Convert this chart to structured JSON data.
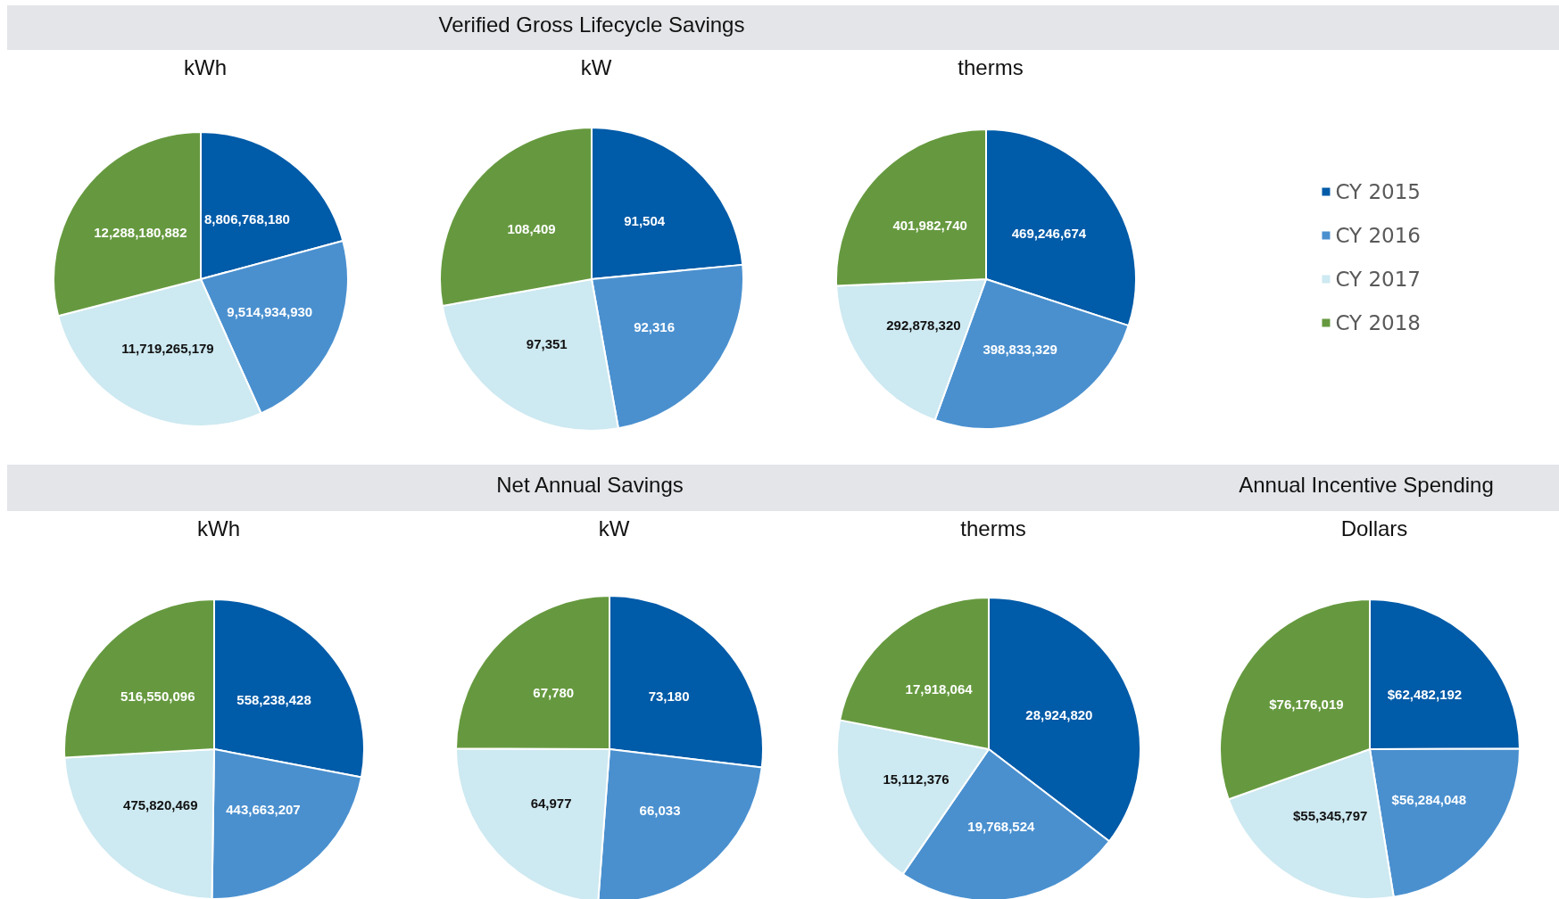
{
  "chart_data": [
    {
      "type": "pie",
      "title": "kWh",
      "annotations": [
        "Verified Gross Lifecycle Savings"
      ],
      "categories": [
        null,
        null,
        null,
        null
      ],
      "values": [
        8806768180,
        9514934930,
        11719265179,
        12288180882
      ],
      "value_labels": [
        "8,806,768,180",
        "9,514,934,930",
        "11,719,265,179",
        "12,288,180,882"
      ],
      "colors": [
        "#005ba8",
        "#4a90cf",
        "#cde9f1",
        "#66993f"
      ],
      "legend": false
    },
    {
      "type": "pie",
      "title": "kW",
      "categories": [
        null,
        null,
        null,
        null
      ],
      "values": [
        91504,
        92316,
        97351,
        108409
      ],
      "value_labels": [
        "91,504",
        "92,316",
        "97,351",
        "108,409"
      ],
      "colors": [
        "#005ba8",
        "#4a90cf",
        "#cde9f1",
        "#66993f"
      ],
      "legend": false
    },
    {
      "type": "pie",
      "title": "therms",
      "categories": [
        "CY 2015",
        "CY 2016",
        "CY 2017",
        "CY 2018"
      ],
      "values": [
        469246674,
        398833329,
        292878320,
        401982740
      ],
      "value_labels": [
        "469,246,674",
        "398,833,329",
        "292,878,320",
        "401,982,740"
      ],
      "colors": [
        "#005ba8",
        "#4a90cf",
        "#cde9f1",
        "#66993f"
      ],
      "legend": "right"
    },
    {
      "type": "pie",
      "title": "kWh",
      "annotations": [
        "Net Annual Savings"
      ],
      "categories": [
        null,
        null,
        null,
        null
      ],
      "values": [
        558238428,
        443663207,
        475820469,
        516550096
      ],
      "value_labels": [
        "558,238,428",
        "443,663,207",
        "475,820,469",
        "516,550,096"
      ],
      "colors": [
        "#005ba8",
        "#4a90cf",
        "#cde9f1",
        "#66993f"
      ],
      "legend": false
    },
    {
      "type": "pie",
      "title": "kW",
      "categories": [
        null,
        null,
        null,
        null
      ],
      "values": [
        73180,
        66033,
        64977,
        67780
      ],
      "value_labels": [
        "73,180",
        "66,033",
        "64,977",
        "67,780"
      ],
      "colors": [
        "#005ba8",
        "#4a90cf",
        "#cde9f1",
        "#66993f"
      ],
      "legend": false
    },
    {
      "type": "pie",
      "title": "therms",
      "categories": [
        null,
        null,
        null,
        null
      ],
      "values": [
        28924820,
        19768524,
        15112376,
        17918064
      ],
      "value_labels": [
        "28,924,820",
        "19,768,524",
        "15,112,376",
        "17,918,064"
      ],
      "colors": [
        "#005ba8",
        "#4a90cf",
        "#cde9f1",
        "#66993f"
      ],
      "legend": false
    },
    {
      "type": "pie",
      "title": "Dollars",
      "annotations": [
        "Annual Incentive Spending"
      ],
      "categories": [
        null,
        null,
        null,
        null
      ],
      "values": [
        62482192,
        56284048,
        55345797,
        76176019
      ],
      "value_labels": [
        "$62,482,192",
        "$56,284,048",
        "$55,345,797",
        "$76,176,019"
      ],
      "colors": [
        "#005ba8",
        "#4a90cf",
        "#cde9f1",
        "#66993f"
      ],
      "legend": false
    }
  ]
}
